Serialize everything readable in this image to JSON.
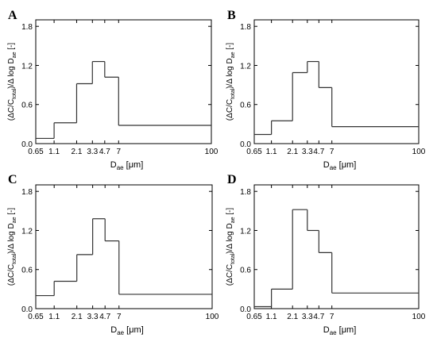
{
  "chart_data": [
    {
      "type": "step",
      "panel_label": "A",
      "x_edges": [
        0.65,
        1.1,
        2.1,
        3.3,
        4.7,
        7,
        100
      ],
      "values": [
        0.08,
        0.32,
        0.92,
        1.26,
        1.02,
        0.28
      ],
      "xticks": [
        "0.65",
        "1.1",
        "2.1",
        "3.3",
        "4.7",
        "7",
        "100"
      ],
      "yticks": [
        "0.0",
        "0.6",
        "1.2",
        "1.8"
      ],
      "ylim": [
        0,
        1.9
      ],
      "x_scale": "log",
      "xlabel_main": "D",
      "xlabel_sub": "ae",
      "xlabel_unit": "[μm]",
      "ylabel_left": "(ΔC/C",
      "ylabel_sub1": "total",
      "ylabel_mid": ")/Δ log D",
      "ylabel_sub2": "ae",
      "ylabel_right": " [-]"
    },
    {
      "type": "step",
      "panel_label": "B",
      "x_edges": [
        0.65,
        1.1,
        2.1,
        3.3,
        4.7,
        7,
        100
      ],
      "values": [
        0.14,
        0.35,
        1.09,
        1.26,
        0.86,
        0.26
      ],
      "xticks": [
        "0.65",
        "1.1",
        "2.1",
        "3.3",
        "4.7",
        "7",
        "100"
      ],
      "yticks": [
        "0.0",
        "0.6",
        "1.2",
        "1.8"
      ],
      "ylim": [
        0,
        1.9
      ],
      "x_scale": "log",
      "xlabel_main": "D",
      "xlabel_sub": "ae",
      "xlabel_unit": "[μm]",
      "ylabel_left": "(ΔC/C",
      "ylabel_sub1": "total",
      "ylabel_mid": ")/Δ log D",
      "ylabel_sub2": "ae",
      "ylabel_right": " [-]"
    },
    {
      "type": "step",
      "panel_label": "C",
      "x_edges": [
        0.65,
        1.1,
        2.1,
        3.3,
        4.7,
        7,
        100
      ],
      "values": [
        0.2,
        0.42,
        0.83,
        1.38,
        1.04,
        0.22
      ],
      "xticks": [
        "0.65",
        "1.1",
        "2.1",
        "3.3",
        "4.7",
        "7",
        "100"
      ],
      "yticks": [
        "0.0",
        "0.6",
        "1.2",
        "1.8"
      ],
      "ylim": [
        0,
        1.9
      ],
      "x_scale": "log",
      "xlabel_main": "D",
      "xlabel_sub": "ae",
      "xlabel_unit": "[μm]",
      "ylabel_left": "(ΔC/C",
      "ylabel_sub1": "total",
      "ylabel_mid": ")/Δ log D",
      "ylabel_sub2": "ae",
      "ylabel_right": " [-]"
    },
    {
      "type": "step",
      "panel_label": "D",
      "x_edges": [
        0.65,
        1.1,
        2.1,
        3.3,
        4.7,
        7,
        100
      ],
      "values": [
        0.03,
        0.3,
        1.52,
        1.2,
        0.86,
        0.24
      ],
      "xticks": [
        "0.65",
        "1.1",
        "2.1",
        "3.3",
        "4.7",
        "7",
        "100"
      ],
      "yticks": [
        "0.0",
        "0.6",
        "1.2",
        "1.8"
      ],
      "ylim": [
        0,
        1.9
      ],
      "x_scale": "log",
      "xlabel_main": "D",
      "xlabel_sub": "ae",
      "xlabel_unit": "[μm]",
      "ylabel_left": "(ΔC/C",
      "ylabel_sub1": "total",
      "ylabel_mid": ")/Δ log D",
      "ylabel_sub2": "ae",
      "ylabel_right": " [-]"
    }
  ]
}
